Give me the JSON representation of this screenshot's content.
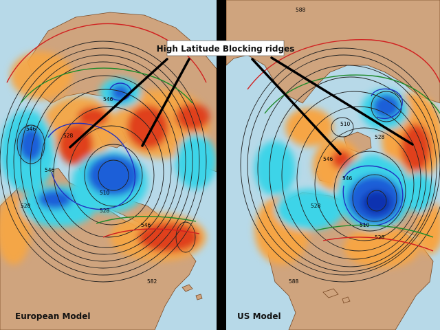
{
  "annotation": {
    "text": "High Latitude Blocking ridges"
  },
  "panels": [
    {
      "id": "european",
      "label": "European Model",
      "contour_labels": [
        "546",
        "528",
        "546",
        "546",
        "528",
        "510",
        "528",
        "546",
        "582"
      ]
    },
    {
      "id": "us",
      "label": "US Model",
      "contour_labels": [
        "588",
        "510",
        "528",
        "546",
        "528",
        "546",
        "510",
        "528",
        "588"
      ]
    }
  ],
  "colors": {
    "ocean": "#b7d9e8",
    "land": "#cfa47e",
    "coast": "#7a4a26",
    "positive_anomaly_light": "#f6a545",
    "positive_anomaly_dark": "#e0401a",
    "negative_anomaly_light": "#3ed4e8",
    "negative_anomaly_dark": "#1f5fd8",
    "height_contour": "#222222",
    "blue_contour": "#2030c0",
    "red_contour": "#d02020",
    "green_contour": "#1e8a2a",
    "divider": "#000000",
    "arrow": "#000000",
    "label_box": "#ffffff"
  }
}
